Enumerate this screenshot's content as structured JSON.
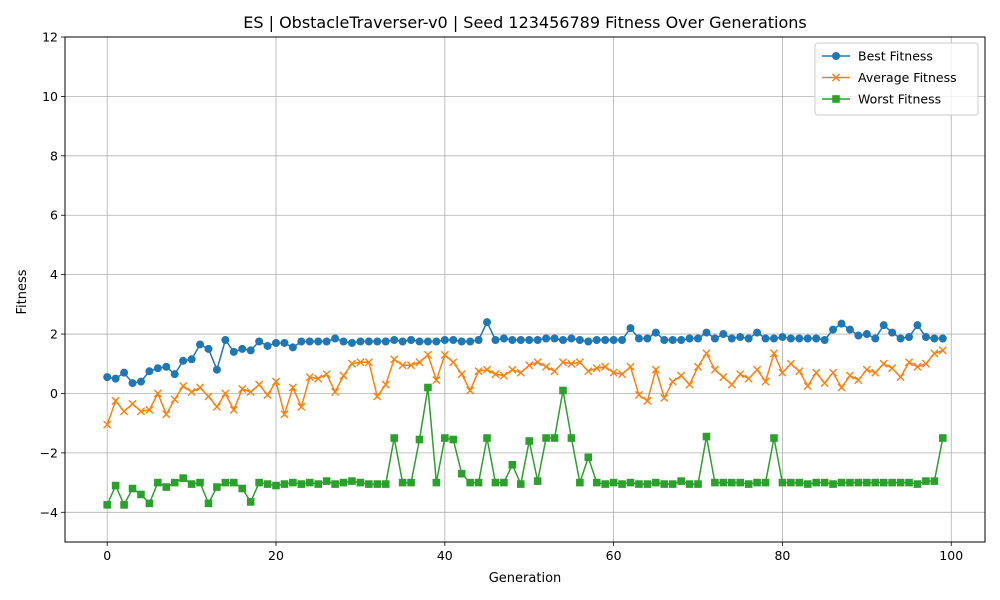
{
  "chart_data": {
    "type": "line",
    "title": "ES | ObstacleTraverser-v0 | Seed 123456789 Fitness Over Generations",
    "xlabel": "Generation",
    "ylabel": "Fitness",
    "xlim": [
      -5,
      104
    ],
    "ylim": [
      -5,
      12
    ],
    "xticks": [
      0,
      20,
      40,
      60,
      80,
      100
    ],
    "yticks": [
      -4,
      -2,
      0,
      2,
      4,
      6,
      8,
      10,
      12
    ],
    "xtick_labels": [
      "0",
      "20",
      "40",
      "60",
      "80",
      "100"
    ],
    "ytick_labels": [
      "−4",
      "−2",
      "0",
      "2",
      "4",
      "6",
      "8",
      "10",
      "12"
    ],
    "grid": true,
    "legend_position": "top-right",
    "x": [
      0,
      1,
      2,
      3,
      4,
      5,
      6,
      7,
      8,
      9,
      10,
      11,
      12,
      13,
      14,
      15,
      16,
      17,
      18,
      19,
      20,
      21,
      22,
      23,
      24,
      25,
      26,
      27,
      28,
      29,
      30,
      31,
      32,
      33,
      34,
      35,
      36,
      37,
      38,
      39,
      40,
      41,
      42,
      43,
      44,
      45,
      46,
      47,
      48,
      49,
      50,
      51,
      52,
      53,
      54,
      55,
      56,
      57,
      58,
      59,
      60,
      61,
      62,
      63,
      64,
      65,
      66,
      67,
      68,
      69,
      70,
      71,
      72,
      73,
      74,
      75,
      76,
      77,
      78,
      79,
      80,
      81,
      82,
      83,
      84,
      85,
      86,
      87,
      88,
      89,
      90,
      91,
      92,
      93,
      94,
      95,
      96,
      97,
      98,
      99
    ],
    "series": [
      {
        "name": "Best Fitness",
        "color": "#1f77b4",
        "marker": "circle",
        "values": [
          0.55,
          0.5,
          0.7,
          0.35,
          0.4,
          0.75,
          0.85,
          0.9,
          0.65,
          1.1,
          1.15,
          1.65,
          1.5,
          0.8,
          1.8,
          1.4,
          1.5,
          1.45,
          1.75,
          1.6,
          1.7,
          1.7,
          1.55,
          1.75,
          1.75,
          1.75,
          1.75,
          1.85,
          1.75,
          1.7,
          1.75,
          1.75,
          1.75,
          1.75,
          1.8,
          1.75,
          1.8,
          1.75,
          1.75,
          1.75,
          1.8,
          1.8,
          1.75,
          1.75,
          1.8,
          2.4,
          1.8,
          1.85,
          1.8,
          1.8,
          1.8,
          1.8,
          1.85,
          1.85,
          1.8,
          1.85,
          1.8,
          1.75,
          1.8,
          1.8,
          1.8,
          1.8,
          2.2,
          1.85,
          1.85,
          2.05,
          1.8,
          1.8,
          1.8,
          1.85,
          1.85,
          2.05,
          1.85,
          2.0,
          1.85,
          1.9,
          1.85,
          2.05,
          1.85,
          1.85,
          1.9,
          1.85,
          1.85,
          1.85,
          1.85,
          1.8,
          2.15,
          2.35,
          2.15,
          1.95,
          2.0,
          1.85,
          2.3,
          2.05,
          1.85,
          1.9,
          2.3,
          1.9,
          1.85,
          1.85
        ]
      },
      {
        "name": "Average Fitness",
        "color": "#ff7f0e",
        "marker": "x",
        "values": [
          -1.05,
          -0.25,
          -0.6,
          -0.35,
          -0.6,
          -0.55,
          0.0,
          -0.7,
          -0.2,
          0.25,
          0.05,
          0.2,
          -0.1,
          -0.45,
          0.0,
          -0.55,
          0.15,
          0.05,
          0.3,
          -0.05,
          0.4,
          -0.7,
          0.2,
          -0.45,
          0.55,
          0.5,
          0.65,
          0.05,
          0.6,
          1.0,
          1.05,
          1.05,
          -0.1,
          0.3,
          1.15,
          0.95,
          0.95,
          1.05,
          1.3,
          0.45,
          1.3,
          1.05,
          0.65,
          0.1,
          0.75,
          0.8,
          0.65,
          0.6,
          0.8,
          0.7,
          0.95,
          1.05,
          0.9,
          0.75,
          1.05,
          1.0,
          1.05,
          0.75,
          0.85,
          0.9,
          0.7,
          0.65,
          0.9,
          -0.05,
          -0.25,
          0.8,
          -0.15,
          0.4,
          0.6,
          0.3,
          0.9,
          1.35,
          0.8,
          0.55,
          0.3,
          0.65,
          0.5,
          0.8,
          0.4,
          1.35,
          0.7,
          1.0,
          0.75,
          0.25,
          0.7,
          0.35,
          0.7,
          0.2,
          0.6,
          0.45,
          0.8,
          0.7,
          1.0,
          0.85,
          0.55,
          1.05,
          0.9,
          1.0,
          1.35,
          1.45
        ]
      },
      {
        "name": "Worst Fitness",
        "color": "#2ca02c",
        "marker": "square",
        "values": [
          -3.75,
          -3.1,
          -3.75,
          -3.2,
          -3.4,
          -3.7,
          -3.0,
          -3.15,
          -3.0,
          -2.85,
          -3.05,
          -3.0,
          -3.7,
          -3.15,
          -3.0,
          -3.0,
          -3.2,
          -3.65,
          -3.0,
          -3.05,
          -3.1,
          -3.05,
          -3.0,
          -3.05,
          -3.0,
          -3.05,
          -2.95,
          -3.05,
          -3.0,
          -2.95,
          -3.0,
          -3.05,
          -3.05,
          -3.05,
          -1.5,
          -3.0,
          -3.0,
          -1.55,
          0.2,
          -3.0,
          -1.5,
          -1.55,
          -2.7,
          -3.0,
          -3.0,
          -1.5,
          -3.0,
          -3.0,
          -2.4,
          -3.05,
          -1.6,
          -2.95,
          -1.5,
          -1.5,
          0.1,
          -1.5,
          -3.0,
          -2.15,
          -3.0,
          -3.05,
          -3.0,
          -3.05,
          -3.0,
          -3.05,
          -3.05,
          -3.0,
          -3.05,
          -3.05,
          -2.95,
          -3.05,
          -3.05,
          -1.45,
          -3.0,
          -3.0,
          -3.0,
          -3.0,
          -3.05,
          -3.0,
          -3.0,
          -1.5,
          -3.0,
          -3.0,
          -3.0,
          -3.05,
          -3.0,
          -3.0,
          -3.05,
          -3.0,
          -3.0,
          -3.0,
          -3.0,
          -3.0,
          -3.0,
          -3.0,
          -3.0,
          -3.0,
          -3.05,
          -2.95,
          -2.95,
          -1.5
        ]
      }
    ]
  }
}
